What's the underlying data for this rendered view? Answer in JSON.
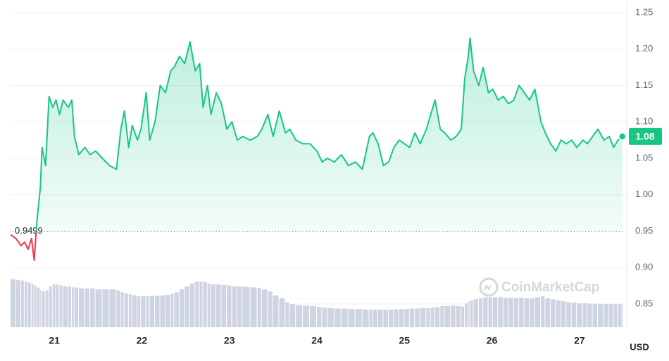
{
  "chart_data": {
    "type": "line",
    "x": [
      20.5,
      20.56,
      20.62,
      20.66,
      20.7,
      20.74,
      20.77,
      20.8,
      20.84,
      20.86,
      20.9,
      20.94,
      20.98,
      21.02,
      21.06,
      21.1,
      21.16,
      21.2,
      21.23,
      21.28,
      21.35,
      21.41,
      21.47,
      21.55,
      21.63,
      21.71,
      21.76,
      21.8,
      21.85,
      21.89,
      21.95,
      21.99,
      22.05,
      22.09,
      22.15,
      22.21,
      22.27,
      22.33,
      22.37,
      22.43,
      22.49,
      22.55,
      22.61,
      22.66,
      22.7,
      22.75,
      22.79,
      22.85,
      22.91,
      22.97,
      23.03,
      23.09,
      23.15,
      23.24,
      23.32,
      23.37,
      23.44,
      23.5,
      23.57,
      23.64,
      23.69,
      23.76,
      23.84,
      23.92,
      24.0,
      24.06,
      24.12,
      24.2,
      24.28,
      24.36,
      24.44,
      24.52,
      24.6,
      24.64,
      24.7,
      24.76,
      24.82,
      24.88,
      24.94,
      25.0,
      25.06,
      25.12,
      25.18,
      25.25,
      25.3,
      25.35,
      25.41,
      25.46,
      25.53,
      25.59,
      25.65,
      25.69,
      25.73,
      25.75,
      25.79,
      25.85,
      25.9,
      25.96,
      26.01,
      26.07,
      26.13,
      26.19,
      26.25,
      26.31,
      26.37,
      26.43,
      26.49,
      26.56,
      26.61,
      26.67,
      26.73,
      26.79,
      26.85,
      26.91,
      26.97,
      27.04,
      27.09,
      27.15,
      27.21,
      27.28,
      27.34,
      27.39,
      27.44,
      27.49
    ],
    "series": [
      {
        "color": "#16c784",
        "values": [
          0.945,
          0.94,
          0.93,
          0.935,
          0.925,
          0.94,
          0.91,
          0.962,
          1.01,
          1.065,
          1.04,
          1.135,
          1.12,
          1.13,
          1.11,
          1.13,
          1.12,
          1.13,
          1.08,
          1.055,
          1.065,
          1.055,
          1.06,
          1.05,
          1.04,
          1.035,
          1.09,
          1.115,
          1.065,
          1.095,
          1.075,
          1.09,
          1.14,
          1.075,
          1.1,
          1.15,
          1.14,
          1.17,
          1.175,
          1.19,
          1.18,
          1.21,
          1.17,
          1.18,
          1.12,
          1.15,
          1.11,
          1.14,
          1.125,
          1.09,
          1.1,
          1.075,
          1.08,
          1.075,
          1.08,
          1.09,
          1.11,
          1.08,
          1.115,
          1.085,
          1.09,
          1.075,
          1.07,
          1.07,
          1.06,
          1.045,
          1.05,
          1.045,
          1.055,
          1.04,
          1.045,
          1.035,
          1.08,
          1.085,
          1.07,
          1.04,
          1.045,
          1.065,
          1.075,
          1.07,
          1.065,
          1.085,
          1.07,
          1.09,
          1.11,
          1.13,
          1.09,
          1.085,
          1.075,
          1.08,
          1.09,
          1.16,
          1.19,
          1.215,
          1.17,
          1.15,
          1.175,
          1.14,
          1.145,
          1.13,
          1.135,
          1.125,
          1.13,
          1.15,
          1.14,
          1.13,
          1.145,
          1.1,
          1.085,
          1.07,
          1.06,
          1.075,
          1.07,
          1.075,
          1.065,
          1.075,
          1.07,
          1.08,
          1.09,
          1.075,
          1.08,
          1.065,
          1.075,
          1.08
        ]
      },
      {
        "type": "bar",
        "axis": "y2",
        "color": "#cfd4e2",
        "values": [
          95,
          93,
          92,
          90,
          88,
          85,
          82,
          78,
          72,
          70,
          72,
          80,
          84,
          84,
          82,
          80,
          80,
          78,
          78,
          76,
          76,
          76,
          74,
          74,
          74,
          72,
          68,
          66,
          64,
          62,
          60,
          60,
          60,
          61,
          61,
          62,
          63,
          65,
          68,
          74,
          80,
          86,
          90,
          90,
          89,
          86,
          84,
          84,
          83,
          82,
          80,
          80,
          79,
          78,
          77,
          74,
          70,
          62,
          56,
          48,
          44,
          42,
          41,
          40,
          38,
          37,
          36,
          35,
          35,
          34,
          34,
          33,
          33,
          33,
          33,
          33,
          33,
          33,
          34,
          34,
          35,
          35,
          36,
          36,
          37,
          38,
          40,
          40,
          41,
          40,
          39,
          46,
          50,
          52,
          54,
          56,
          58,
          58,
          58,
          58,
          57,
          57,
          57,
          57,
          56,
          56,
          58,
          60,
          56,
          54,
          52,
          50,
          48,
          47,
          46,
          46,
          45,
          45,
          44,
          44,
          44,
          44,
          44,
          44
        ]
      }
    ],
    "baseline": 0.9499,
    "below_color": "#ea3943",
    "xlim": [
      20.5,
      27.5
    ],
    "xticks": [
      21,
      22,
      23,
      24,
      25,
      26,
      27
    ],
    "ylim": [
      0.82,
      1.25
    ],
    "yticks": [
      0.85,
      {
        "value": 0.9,
        "label": "0.90"
      },
      0.95,
      {
        "value": 1.0,
        "label": "1.00"
      },
      1.05,
      {
        "value": 1.1,
        "label": "1.10"
      },
      1.15,
      {
        "value": 1.2,
        "label": "1.20"
      },
      1.25
    ],
    "y2lim": [
      0,
      100
    ],
    "y_unit": "USD",
    "watermark": "CoinMarketCap",
    "grid": true
  }
}
